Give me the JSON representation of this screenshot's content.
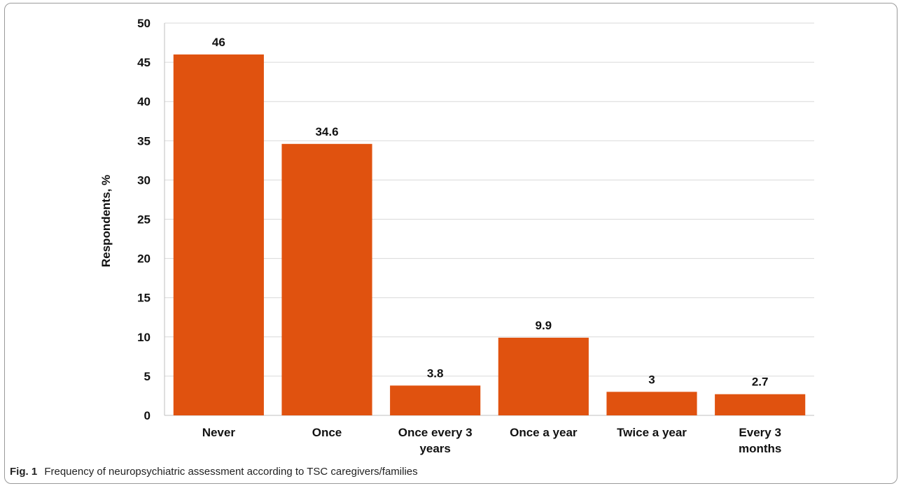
{
  "caption": {
    "label": "Fig. 1",
    "text": "Frequency of neuropsychiatric assessment according to TSC caregivers/families"
  },
  "colors": {
    "bar": "#E0520F",
    "grid": "#d9d9d9",
    "axis": "#bfbfbf"
  },
  "chart_data": {
    "type": "bar",
    "categories": [
      [
        "Never"
      ],
      [
        "Once"
      ],
      [
        "Once every 3",
        "years"
      ],
      [
        "Once a year"
      ],
      [
        "Twice a year"
      ],
      [
        "Every 3",
        "months"
      ]
    ],
    "values": [
      46,
      34.6,
      3.8,
      9.9,
      3,
      2.7
    ],
    "data_labels": [
      "46",
      "34.6",
      "3.8",
      "9.9",
      "3",
      "2.7"
    ],
    "ylabel": "Respondents, %",
    "xlabel": "",
    "ylim": [
      0,
      50
    ],
    "yticks": [
      0,
      5,
      10,
      15,
      20,
      25,
      30,
      35,
      40,
      45,
      50
    ],
    "grid": true
  }
}
